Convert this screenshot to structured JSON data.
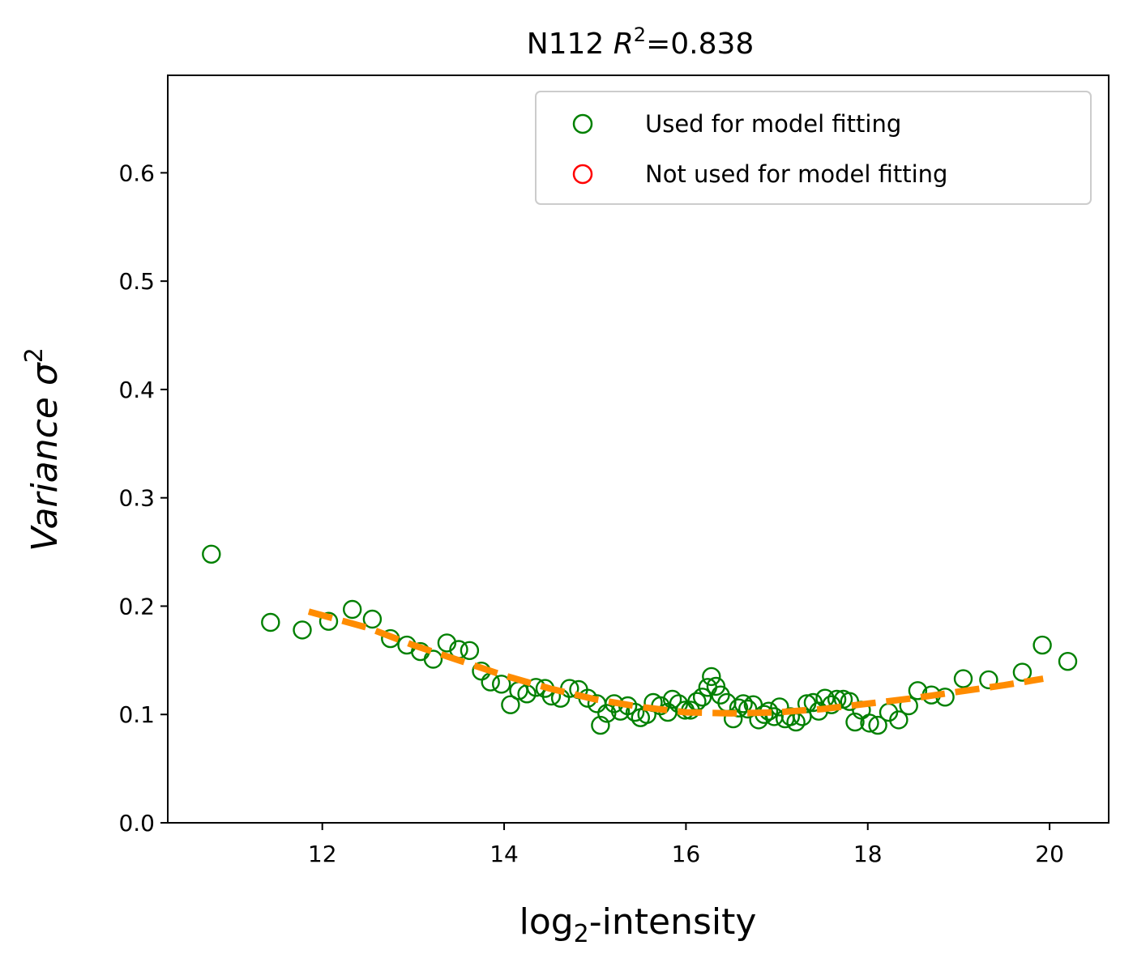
{
  "chart_data": {
    "type": "scatter",
    "title": {
      "prefix": "N112 ",
      "symbol": "R",
      "superscript": "2",
      "suffix": "=0.838"
    },
    "xlabel": {
      "base": "log",
      "subscript": "2",
      "rest": "-intensity"
    },
    "ylabel": {
      "main": "Variance ",
      "symbol": "σ",
      "superscript": "2"
    },
    "xlim": [
      10.3,
      20.65
    ],
    "ylim": [
      0.0,
      0.69
    ],
    "xticks": [
      12,
      14,
      16,
      18,
      20
    ],
    "yticks": [
      0.0,
      0.1,
      0.2,
      0.3,
      0.4,
      0.5,
      0.6
    ],
    "xtick_labels": [
      "12",
      "14",
      "16",
      "18",
      "20"
    ],
    "ytick_labels": [
      "0.0",
      "0.1",
      "0.2",
      "0.3",
      "0.4",
      "0.5",
      "0.6"
    ],
    "legend_position": "top-right",
    "colors": {
      "used": "#008000",
      "not_used": "#ff0000",
      "fit": "#ff8c00"
    },
    "series": [
      {
        "name": "Used for model fitting",
        "marker": "open-circle",
        "points": [
          [
            10.78,
            0.248
          ],
          [
            11.43,
            0.185
          ],
          [
            11.78,
            0.178
          ],
          [
            12.07,
            0.186
          ],
          [
            12.33,
            0.197
          ],
          [
            12.55,
            0.188
          ],
          [
            12.75,
            0.17
          ],
          [
            12.93,
            0.164
          ],
          [
            13.08,
            0.158
          ],
          [
            13.22,
            0.151
          ],
          [
            13.37,
            0.166
          ],
          [
            13.5,
            0.16
          ],
          [
            13.62,
            0.159
          ],
          [
            13.75,
            0.14
          ],
          [
            13.85,
            0.13
          ],
          [
            13.97,
            0.128
          ],
          [
            14.07,
            0.109
          ],
          [
            14.16,
            0.122
          ],
          [
            14.25,
            0.119
          ],
          [
            14.35,
            0.125
          ],
          [
            14.45,
            0.124
          ],
          [
            14.52,
            0.117
          ],
          [
            14.62,
            0.115
          ],
          [
            14.72,
            0.124
          ],
          [
            14.82,
            0.123
          ],
          [
            14.92,
            0.115
          ],
          [
            15.02,
            0.11
          ],
          [
            15.06,
            0.09
          ],
          [
            15.13,
            0.101
          ],
          [
            15.21,
            0.11
          ],
          [
            15.28,
            0.103
          ],
          [
            15.36,
            0.108
          ],
          [
            15.44,
            0.102
          ],
          [
            15.5,
            0.097
          ],
          [
            15.57,
            0.1
          ],
          [
            15.64,
            0.111
          ],
          [
            15.72,
            0.108
          ],
          [
            15.8,
            0.102
          ],
          [
            15.85,
            0.114
          ],
          [
            15.92,
            0.11
          ],
          [
            15.99,
            0.104
          ],
          [
            16.05,
            0.104
          ],
          [
            16.12,
            0.112
          ],
          [
            16.18,
            0.116
          ],
          [
            16.24,
            0.125
          ],
          [
            16.28,
            0.135
          ],
          [
            16.33,
            0.126
          ],
          [
            16.38,
            0.118
          ],
          [
            16.45,
            0.111
          ],
          [
            16.52,
            0.096
          ],
          [
            16.58,
            0.106
          ],
          [
            16.63,
            0.11
          ],
          [
            16.68,
            0.105
          ],
          [
            16.74,
            0.109
          ],
          [
            16.8,
            0.095
          ],
          [
            16.86,
            0.1
          ],
          [
            16.91,
            0.103
          ],
          [
            16.97,
            0.098
          ],
          [
            17.03,
            0.107
          ],
          [
            17.09,
            0.096
          ],
          [
            17.15,
            0.098
          ],
          [
            17.21,
            0.093
          ],
          [
            17.28,
            0.098
          ],
          [
            17.33,
            0.11
          ],
          [
            17.4,
            0.111
          ],
          [
            17.46,
            0.103
          ],
          [
            17.53,
            0.115
          ],
          [
            17.6,
            0.109
          ],
          [
            17.66,
            0.114
          ],
          [
            17.73,
            0.114
          ],
          [
            17.8,
            0.112
          ],
          [
            17.86,
            0.093
          ],
          [
            17.93,
            0.104
          ],
          [
            18.02,
            0.092
          ],
          [
            18.11,
            0.09
          ],
          [
            18.23,
            0.102
          ],
          [
            18.34,
            0.095
          ],
          [
            18.45,
            0.108
          ],
          [
            18.55,
            0.122
          ],
          [
            18.7,
            0.118
          ],
          [
            18.85,
            0.116
          ],
          [
            19.05,
            0.133
          ],
          [
            19.33,
            0.132
          ],
          [
            19.7,
            0.139
          ],
          [
            19.92,
            0.164
          ],
          [
            20.2,
            0.149
          ]
        ]
      },
      {
        "name": "Not used for model fitting",
        "marker": "open-circle",
        "points": []
      }
    ],
    "fit_line": {
      "style": "dashed",
      "x": [
        11.85,
        12.5,
        13.0,
        13.5,
        14.0,
        14.5,
        15.0,
        15.5,
        16.0,
        16.5,
        17.0,
        17.5,
        18.0,
        18.5,
        19.0,
        19.5,
        19.93
      ],
      "y": [
        0.195,
        0.18,
        0.164,
        0.15,
        0.136,
        0.124,
        0.114,
        0.107,
        0.102,
        0.101,
        0.102,
        0.105,
        0.11,
        0.115,
        0.121,
        0.127,
        0.133
      ]
    }
  }
}
